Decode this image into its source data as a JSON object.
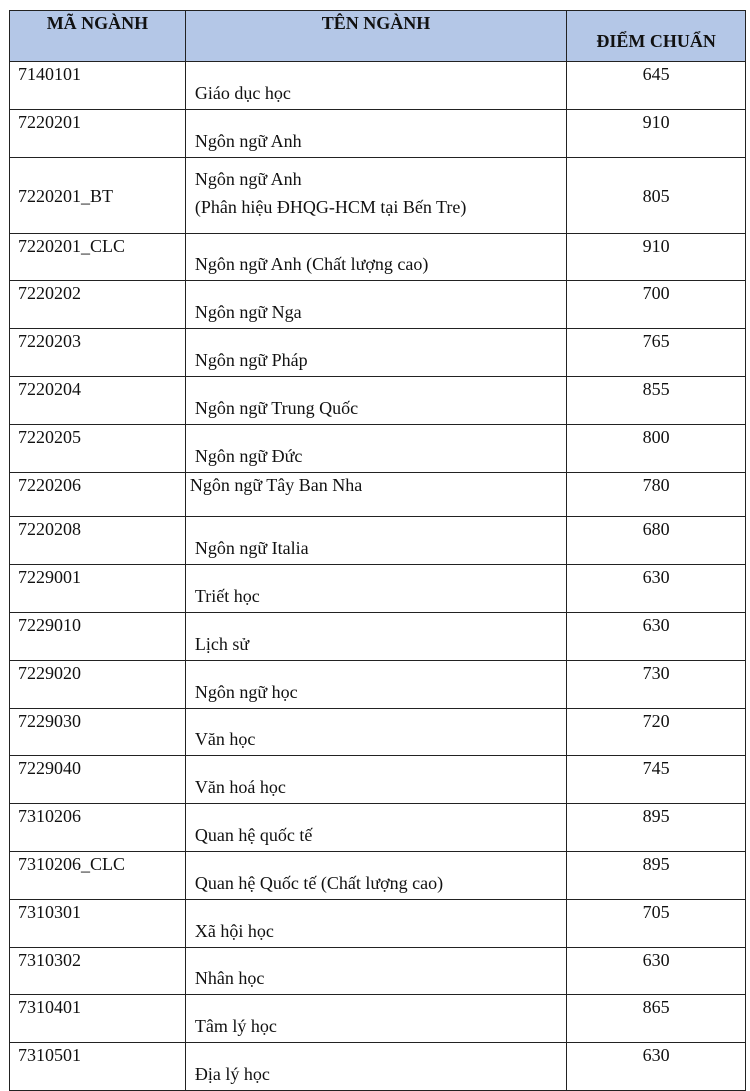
{
  "header": {
    "code": "MÃ NGÀNH",
    "name": "TÊN NGÀNH",
    "score": "ĐIỂM CHUẨN"
  },
  "header_color": "#b4c7e7",
  "rows": [
    {
      "code": "7140101",
      "name": "Giáo dục học",
      "score": "645"
    },
    {
      "code": "7220201",
      "name": "Ngôn ngữ Anh",
      "score": "910"
    },
    {
      "code": "7220201_BT",
      "name": "Ngôn ngữ Anh",
      "name2": "(Phân hiệu ĐHQG-HCM tại Bến Tre)",
      "score": "805"
    },
    {
      "code": "7220201_CLC",
      "name": "Ngôn ngữ Anh (Chất lượng cao)",
      "score": "910"
    },
    {
      "code": "7220202",
      "name": "Ngôn ngữ Nga",
      "score": "700"
    },
    {
      "code": "7220203",
      "name": "Ngôn ngữ Pháp",
      "score": "765"
    },
    {
      "code": "7220204",
      "name": "Ngôn ngữ Trung Quốc",
      "score": "855"
    },
    {
      "code": "7220205",
      "name": "Ngôn ngữ Đức",
      "score": "800"
    },
    {
      "code": "7220206",
      "name": "Ngôn ngữ Tây Ban Nha",
      "score": "780"
    },
    {
      "code": "7220208",
      "name": "Ngôn ngữ Italia",
      "score": "680"
    },
    {
      "code": "7229001",
      "name": "Triết học",
      "score": "630"
    },
    {
      "code": "7229010",
      "name": "Lịch sử",
      "score": "630"
    },
    {
      "code": "7229020",
      "name": "Ngôn ngữ học",
      "score": "730"
    },
    {
      "code": "7229030",
      "name": "Văn học",
      "score": "720"
    },
    {
      "code": "7229040",
      "name": "Văn hoá học",
      "score": "745"
    },
    {
      "code": "7310206",
      "name": "Quan hệ quốc tế",
      "score": "895"
    },
    {
      "code": "7310206_CLC",
      "name": "Quan hệ Quốc tế (Chất lượng cao)",
      "score": "895"
    },
    {
      "code": "7310301",
      "name": "Xã hội học",
      "score": "705"
    },
    {
      "code": "7310302",
      "name": "Nhân học",
      "score": "630"
    },
    {
      "code": "7310401",
      "name": "Tâm lý học",
      "score": "865"
    },
    {
      "code": "7310501",
      "name": "Địa lý học",
      "score": "630"
    }
  ]
}
